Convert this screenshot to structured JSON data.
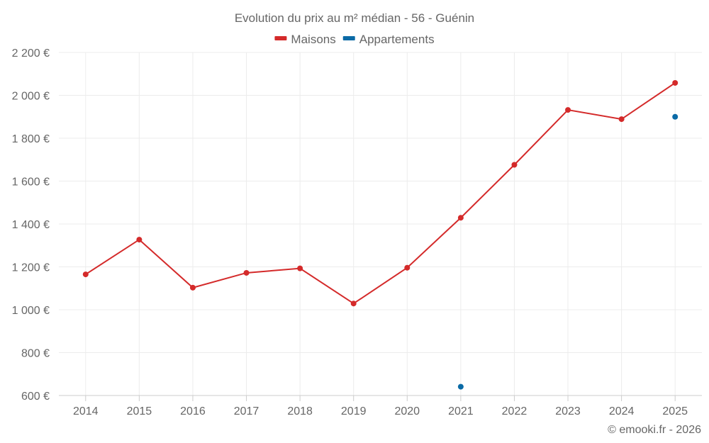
{
  "chart_data": {
    "type": "line",
    "title": "Evolution du prix au m² médian - 56 - Guénin",
    "categories": [
      "2014",
      "2015",
      "2016",
      "2017",
      "2018",
      "2019",
      "2020",
      "2021",
      "2022",
      "2023",
      "2024",
      "2025"
    ],
    "ylim": [
      600,
      2200
    ],
    "yticks": [
      600,
      800,
      1000,
      1200,
      1400,
      1600,
      1800,
      2000,
      2200
    ],
    "ytick_labels": [
      "600 €",
      "800 €",
      "1 000 €",
      "1 200 €",
      "1 400 €",
      "1 600 €",
      "1 800 €",
      "2 000 €",
      "2 200 €"
    ],
    "grid": true,
    "legend_position": "top-center",
    "series": [
      {
        "name": "Maisons",
        "color": "#d42a2a",
        "values": [
          1165,
          1327,
          1103,
          1172,
          1193,
          1029,
          1196,
          1429,
          1676,
          1932,
          1889,
          2058
        ]
      },
      {
        "name": "Appartements",
        "color": "#0a6aa6",
        "values": [
          null,
          null,
          null,
          null,
          null,
          null,
          null,
          641,
          null,
          null,
          null,
          1900
        ]
      }
    ]
  },
  "footer": {
    "credit": "© emooki.fr - 2026"
  }
}
